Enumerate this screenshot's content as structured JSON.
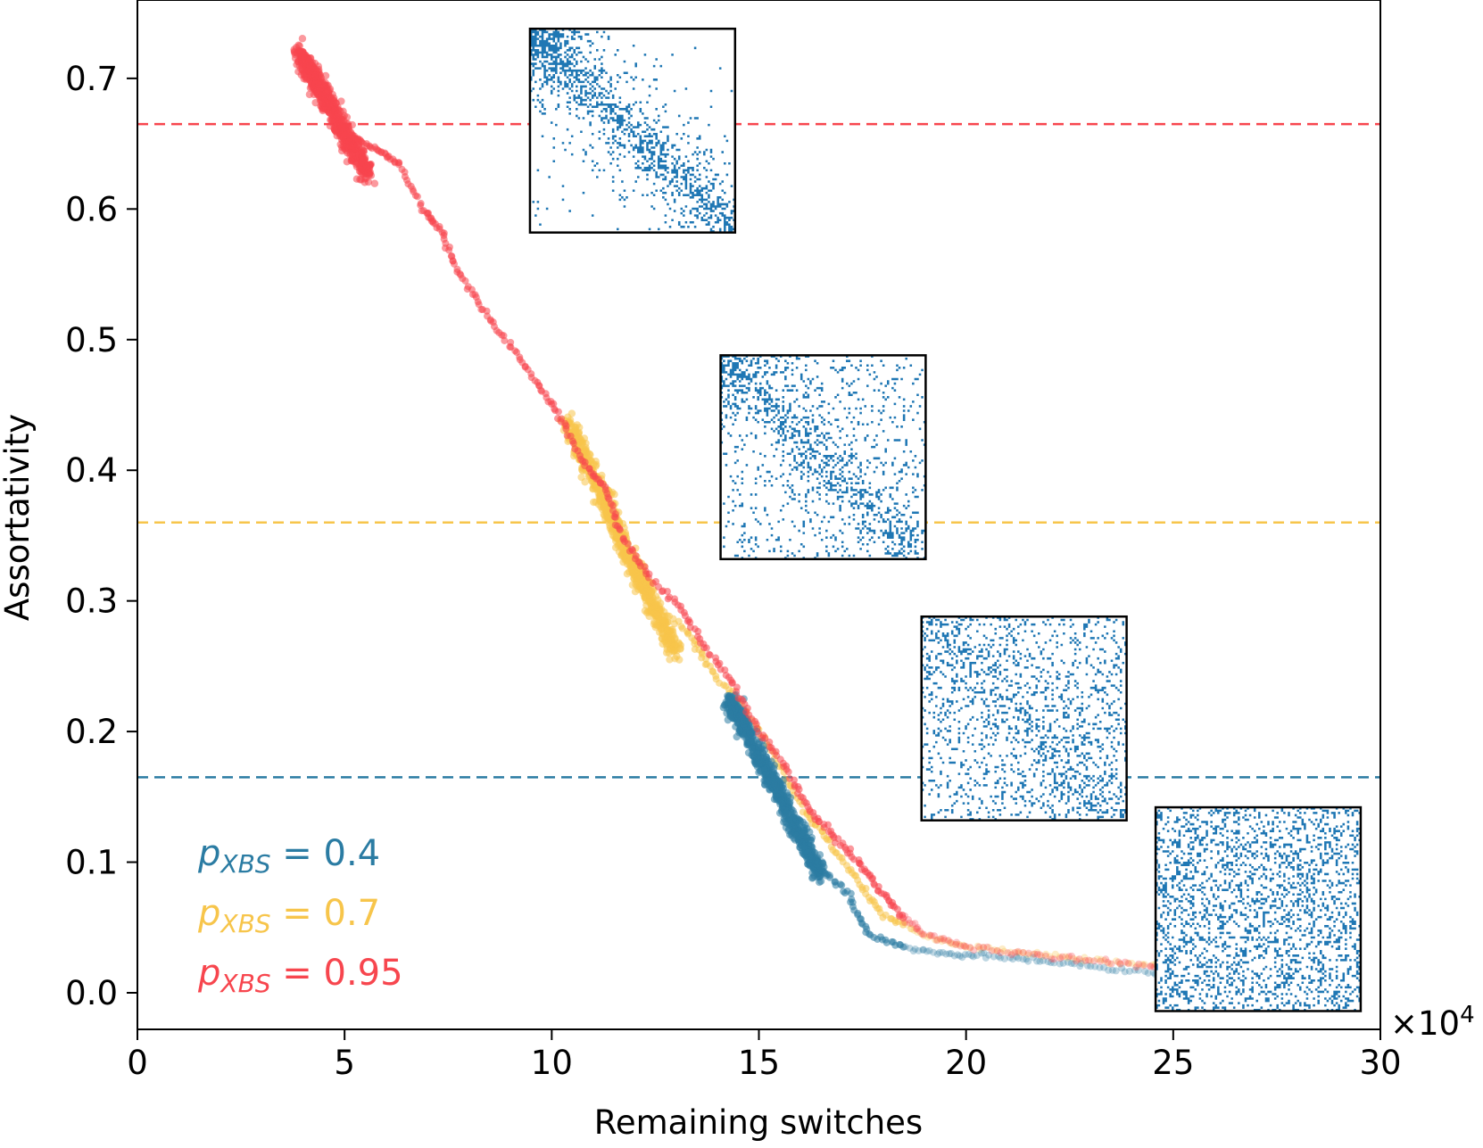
{
  "chart_data": {
    "type": "scatter",
    "xlabel": "Remaining switches",
    "ylabel": "Assortativity",
    "x_multiplier_label": "×10",
    "x_multiplier_exp": "4",
    "xlim": [
      0,
      30
    ],
    "ylim": [
      -0.028,
      0.76
    ],
    "x_ticks": [
      0,
      5,
      10,
      15,
      20,
      25,
      30
    ],
    "x_tick_labels": [
      "0",
      "5",
      "10",
      "15",
      "20",
      "25",
      "30"
    ],
    "y_ticks": [
      0.0,
      0.1,
      0.2,
      0.3,
      0.4,
      0.5,
      0.6,
      0.7
    ],
    "y_tick_labels": [
      "0.0",
      "0.1",
      "0.2",
      "0.3",
      "0.4",
      "0.5",
      "0.6",
      "0.7"
    ],
    "grid": false,
    "legend_placement": "lower-left",
    "colors": {
      "blue": "#2b7ca3",
      "yellow": "#f7c54b",
      "red": "#f7464e",
      "matrix": "#1f77b4"
    },
    "series": [
      {
        "name": "p_XBS = 0.4",
        "legend_prefix": "p",
        "legend_sub": "XBS",
        "legend_value": " = 0.4",
        "color": "#2b7ca3",
        "reference_line_y": 0.165,
        "trajectory": [
          [
            14.2,
            0.22
          ],
          [
            14.8,
            0.19
          ],
          [
            15.4,
            0.155
          ],
          [
            15.9,
            0.12
          ],
          [
            16.5,
            0.095
          ],
          [
            17.2,
            0.075
          ],
          [
            17.6,
            0.045
          ],
          [
            18.5,
            0.035
          ],
          [
            19.5,
            0.03
          ],
          [
            20.5,
            0.028
          ],
          [
            21.7,
            0.025
          ],
          [
            23.0,
            0.02
          ],
          [
            24.5,
            0.015
          ],
          [
            26.0,
            0.01
          ]
        ],
        "cluster": {
          "x": [
            14.3,
            16.5
          ],
          "y": [
            0.09,
            0.225
          ]
        }
      },
      {
        "name": "p_XBS = 0.7",
        "legend_prefix": "p",
        "legend_sub": "XBS",
        "legend_value": " = 0.7",
        "color": "#f7c54b",
        "reference_line_y": 0.36,
        "trajectory": [
          [
            10.4,
            0.43
          ],
          [
            11.0,
            0.395
          ],
          [
            11.4,
            0.36
          ],
          [
            11.8,
            0.33
          ],
          [
            12.4,
            0.3
          ],
          [
            13.3,
            0.275
          ],
          [
            13.8,
            0.25
          ],
          [
            14.6,
            0.22
          ],
          [
            15.4,
            0.18
          ],
          [
            16.1,
            0.14
          ],
          [
            16.7,
            0.115
          ],
          [
            17.4,
            0.085
          ],
          [
            18.0,
            0.06
          ],
          [
            18.9,
            0.045
          ],
          [
            20.0,
            0.035
          ],
          [
            21.5,
            0.03
          ],
          [
            23.0,
            0.025
          ],
          [
            24.7,
            0.02
          ],
          [
            26.0,
            0.015
          ]
        ],
        "cluster": {
          "x": [
            10.4,
            13.0
          ],
          "y": [
            0.26,
            0.435
          ]
        }
      },
      {
        "name": "p_XBS = 0.95",
        "legend_prefix": "p",
        "legend_sub": "XBS",
        "legend_value": " = 0.95",
        "color": "#f7464e",
        "reference_line_y": 0.665,
        "trajectory": [
          [
            3.9,
            0.72
          ],
          [
            4.6,
            0.69
          ],
          [
            5.2,
            0.655
          ],
          [
            5.8,
            0.645
          ],
          [
            6.3,
            0.635
          ],
          [
            6.9,
            0.6
          ],
          [
            7.3,
            0.585
          ],
          [
            7.7,
            0.555
          ],
          [
            8.3,
            0.525
          ],
          [
            9.0,
            0.495
          ],
          [
            9.7,
            0.465
          ],
          [
            10.2,
            0.44
          ],
          [
            10.8,
            0.405
          ],
          [
            11.3,
            0.385
          ],
          [
            11.7,
            0.35
          ],
          [
            12.3,
            0.32
          ],
          [
            13.1,
            0.295
          ],
          [
            13.7,
            0.265
          ],
          [
            14.4,
            0.235
          ],
          [
            15.0,
            0.2
          ],
          [
            15.7,
            0.17
          ],
          [
            16.2,
            0.14
          ],
          [
            16.8,
            0.12
          ],
          [
            17.4,
            0.1
          ],
          [
            17.9,
            0.08
          ],
          [
            18.4,
            0.06
          ],
          [
            19.0,
            0.045
          ],
          [
            20.0,
            0.035
          ],
          [
            21.5,
            0.03
          ],
          [
            23.0,
            0.025
          ],
          [
            24.5,
            0.02
          ],
          [
            25.6,
            0.018
          ]
        ],
        "cluster": {
          "x": [
            3.9,
            5.6
          ],
          "y": [
            0.625,
            0.72
          ]
        }
      }
    ],
    "insets": [
      {
        "name": "adjacency-matrix-inset-1",
        "center_x": 11.95,
        "center_y": 0.66,
        "density": 0.2,
        "diag": 0.95,
        "width_x": 4.95,
        "height_y": 0.156
      },
      {
        "name": "adjacency-matrix-inset-2",
        "center_x": 16.55,
        "center_y": 0.41,
        "density": 0.18,
        "diag": 0.55,
        "width_x": 4.95,
        "height_y": 0.156
      },
      {
        "name": "adjacency-matrix-inset-3",
        "center_x": 21.4,
        "center_y": 0.21,
        "density": 0.2,
        "diag": 0.3,
        "width_x": 4.95,
        "height_y": 0.156
      },
      {
        "name": "adjacency-matrix-inset-4",
        "center_x": 27.05,
        "center_y": 0.064,
        "density": 0.25,
        "diag": 0.0,
        "width_x": 4.95,
        "height_y": 0.156
      }
    ]
  }
}
